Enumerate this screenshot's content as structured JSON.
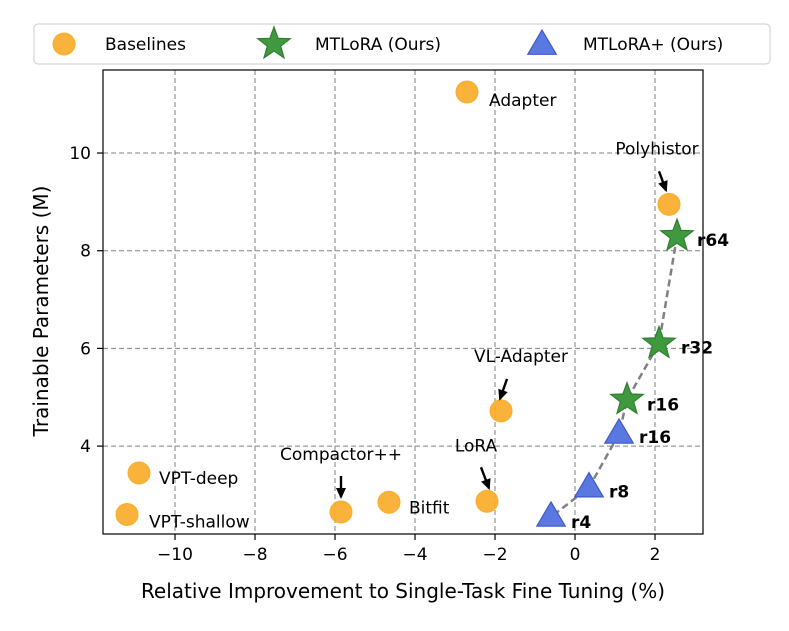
{
  "chart_data": {
    "type": "scatter",
    "xlabel": "Relative Improvement to Single-Task Fine Tuning (%)",
    "ylabel": "Trainable Parameters (M)",
    "xlim": [
      -11.8,
      3.2
    ],
    "ylim": [
      2.2,
      11.7
    ],
    "x_ticks": [
      -10,
      -8,
      -6,
      -4,
      -2,
      0,
      2
    ],
    "y_ticks": [
      4,
      6,
      8,
      10
    ],
    "x_tick_labels": [
      "−10",
      "−8",
      "−6",
      "−4",
      "−2",
      "0",
      "2"
    ],
    "y_tick_labels": [
      "4",
      "6",
      "8",
      "10"
    ],
    "grid": true,
    "legend_position": "top",
    "colors": {
      "baselines": "#f9ad2a",
      "mtlora": "#3f9a3f",
      "mtlora_plus": "#5b77e0",
      "trend": "#808080"
    },
    "legend": [
      {
        "label": "Baselines",
        "marker": "circle",
        "color": "#f9ad2a"
      },
      {
        "label": "MTLoRA (Ours)",
        "marker": "star",
        "color": "#3f9a3f"
      },
      {
        "label": "MTLoRA+ (Ours)",
        "marker": "triangle",
        "color": "#5b77e0"
      }
    ],
    "series": [
      {
        "name": "Baselines",
        "marker": "circle",
        "points": [
          {
            "label": "Adapter",
            "x": -2.7,
            "y": 11.25
          },
          {
            "label": "Polyhistor",
            "x": 2.35,
            "y": 8.95
          },
          {
            "label": "VL-Adapter",
            "x": -1.85,
            "y": 4.72
          },
          {
            "label": "LoRA",
            "x": -2.2,
            "y": 2.87
          },
          {
            "label": "Bitfit",
            "x": -4.65,
            "y": 2.85
          },
          {
            "label": "Compactor++",
            "x": -5.85,
            "y": 2.65
          },
          {
            "label": "VPT-deep",
            "x": -10.9,
            "y": 3.45
          },
          {
            "label": "VPT-shallow",
            "x": -11.2,
            "y": 2.6
          }
        ]
      },
      {
        "name": "MTLoRA (Ours)",
        "marker": "star",
        "points": [
          {
            "label": "r64",
            "x": 2.55,
            "y": 8.3
          },
          {
            "label": "r32",
            "x": 2.1,
            "y": 6.1
          },
          {
            "label": "r16",
            "x": 1.3,
            "y": 4.95
          }
        ]
      },
      {
        "name": "MTLoRA+ (Ours)",
        "marker": "triangle",
        "points": [
          {
            "label": "r16",
            "x": 1.1,
            "y": 4.25
          },
          {
            "label": "r8",
            "x": 0.35,
            "y": 3.15
          },
          {
            "label": "r4",
            "x": -0.6,
            "y": 2.55
          }
        ]
      }
    ]
  }
}
